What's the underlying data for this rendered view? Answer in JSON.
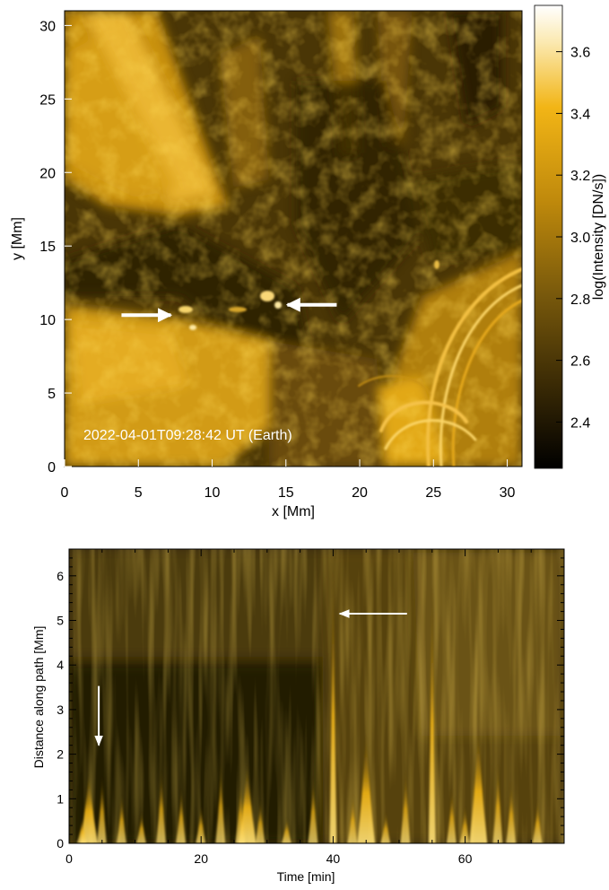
{
  "chart_data": [
    {
      "type": "heatmap",
      "title": "",
      "timestamp_label": "2022-04-01T09:28:42 UT (Earth)",
      "xlabel": "x [Mm]",
      "ylabel": "y [Mm]",
      "xlim": [
        0,
        31
      ],
      "ylim": [
        0,
        31
      ],
      "x_ticks": [
        0,
        5,
        10,
        15,
        20,
        25,
        30
      ],
      "y_ticks": [
        0,
        5,
        10,
        15,
        20,
        25,
        30
      ],
      "colorbar": {
        "label": "log(Intensity [DN/s])",
        "range": [
          2.25,
          3.75
        ],
        "ticks": [
          2.4,
          2.6,
          2.8,
          3.0,
          3.2,
          3.4,
          3.6
        ],
        "tick_labels": [
          "2.4",
          "2.6",
          "2.8",
          "3.0",
          "3.2",
          "3.4",
          "3.6"
        ],
        "colors": [
          "#000000",
          "#3a2a05",
          "#7a5a0c",
          "#c08a0c",
          "#f2b516",
          "#fbe9b0",
          "#ffffff"
        ]
      },
      "annotations": [
        {
          "kind": "arrow",
          "direction": "right",
          "points_to": [
            7.2,
            10.3
          ]
        },
        {
          "kind": "arrow",
          "direction": "left",
          "points_to": [
            15.1,
            11.0
          ]
        }
      ]
    },
    {
      "type": "heatmap",
      "title": "",
      "xlabel": "Time [min]",
      "ylabel": "Distance along path [Mm]",
      "xlim": [
        0,
        75
      ],
      "ylim": [
        0,
        6.6
      ],
      "x_ticks": [
        0,
        20,
        40,
        60
      ],
      "y_ticks": [
        0,
        1,
        2,
        3,
        4,
        5,
        6
      ],
      "bright_features": [
        {
          "time_min": 40,
          "top_Mm": 6.4
        },
        {
          "time_min": 55,
          "top_Mm": 6.0
        },
        {
          "time_min": 3,
          "top_Mm": 1.6
        },
        {
          "time_min": 45,
          "top_Mm": 2.5
        },
        {
          "time_min": 62,
          "top_Mm": 2.6
        },
        {
          "time_min": 27,
          "top_Mm": 1.8
        }
      ],
      "annotations": [
        {
          "kind": "arrow",
          "direction": "down",
          "points_to": [
            4.5,
            2.2
          ]
        },
        {
          "kind": "arrow",
          "direction": "left",
          "points_to": [
            41,
            5.15
          ]
        }
      ]
    }
  ]
}
